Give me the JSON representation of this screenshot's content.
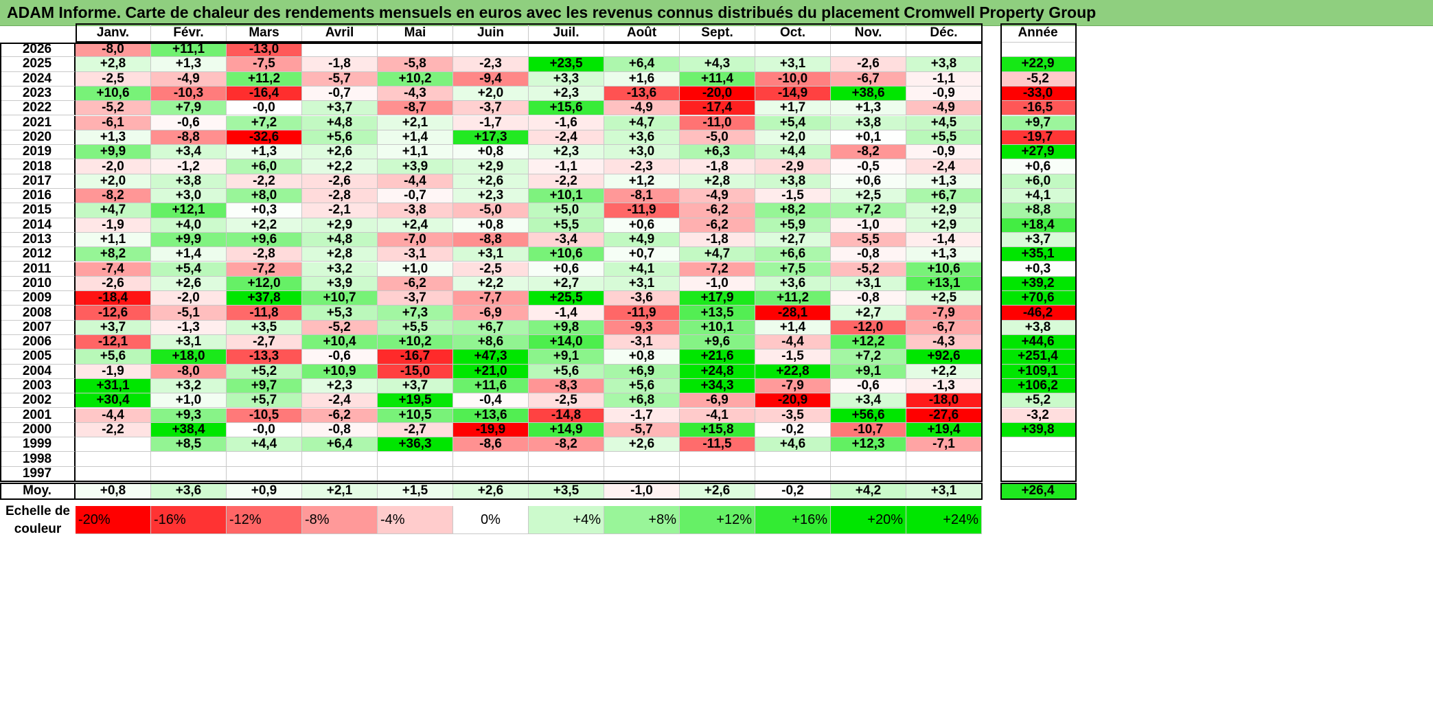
{
  "title": "ADAM Informe. Carte de chaleur des rendements mensuels en euros avec les revenus connus distribués du placement Cromwell Property Group",
  "chart_data": {
    "type": "heatmap",
    "columns": [
      "Janv.",
      "Févr.",
      "Mars",
      "Avril",
      "Mai",
      "Juin",
      "Juil.",
      "Août",
      "Sept.",
      "Oct.",
      "Nov.",
      "Déc."
    ],
    "year_column_label": "Année",
    "average_row_label": "Moy.",
    "rows": [
      {
        "year": "2026",
        "values": [
          "-8,0",
          "+11,1",
          "-13,0",
          "",
          "",
          "",
          "",
          "",
          "",
          "",
          "",
          ""
        ],
        "annual": ""
      },
      {
        "year": "2025",
        "values": [
          "+2,8",
          "+1,3",
          "-7,5",
          "-1,8",
          "-5,8",
          "-2,3",
          "+23,5",
          "+6,4",
          "+4,3",
          "+3,1",
          "-2,6",
          "+3,8"
        ],
        "annual": "+22,9"
      },
      {
        "year": "2024",
        "values": [
          "-2,5",
          "-4,9",
          "+11,2",
          "-5,7",
          "+10,2",
          "-9,4",
          "+3,3",
          "+1,6",
          "+11,4",
          "-10,0",
          "-6,7",
          "-1,1"
        ],
        "annual": "-5,2"
      },
      {
        "year": "2023",
        "values": [
          "+10,6",
          "-10,3",
          "-16,4",
          "-0,7",
          "-4,3",
          "+2,0",
          "+2,3",
          "-13,6",
          "-20,0",
          "-14,9",
          "+38,6",
          "-0,9"
        ],
        "annual": "-33,0"
      },
      {
        "year": "2022",
        "values": [
          "-5,2",
          "+7,9",
          "-0,0",
          "+3,7",
          "-8,7",
          "-3,7",
          "+15,6",
          "-4,9",
          "-17,4",
          "+1,7",
          "+1,3",
          "-4,9"
        ],
        "annual": "-16,5"
      },
      {
        "year": "2021",
        "values": [
          "-6,1",
          "-0,6",
          "+7,2",
          "+4,8",
          "+2,1",
          "-1,7",
          "-1,6",
          "+4,7",
          "-11,0",
          "+5,4",
          "+3,8",
          "+4,5"
        ],
        "annual": "+9,7"
      },
      {
        "year": "2020",
        "values": [
          "+1,3",
          "-8,8",
          "-32,6",
          "+5,6",
          "+1,4",
          "+17,3",
          "-2,4",
          "+3,6",
          "-5,0",
          "+2,0",
          "+0,1",
          "+5,5"
        ],
        "annual": "-19,7"
      },
      {
        "year": "2019",
        "values": [
          "+9,9",
          "+3,4",
          "+1,3",
          "+2,6",
          "+1,1",
          "+0,8",
          "+2,3",
          "+3,0",
          "+6,3",
          "+4,4",
          "-8,2",
          "-0,9"
        ],
        "annual": "+27,9"
      },
      {
        "year": "2018",
        "values": [
          "-2,0",
          "-1,2",
          "+6,0",
          "+2,2",
          "+3,9",
          "+2,9",
          "-1,1",
          "-2,3",
          "-1,8",
          "-2,9",
          "-0,5",
          "-2,4"
        ],
        "annual": "+0,6"
      },
      {
        "year": "2017",
        "values": [
          "+2,0",
          "+3,8",
          "-2,2",
          "-2,6",
          "-4,4",
          "+2,6",
          "-2,2",
          "+1,2",
          "+2,8",
          "+3,8",
          "+0,6",
          "+1,3"
        ],
        "annual": "+6,0"
      },
      {
        "year": "2016",
        "values": [
          "-8,2",
          "+3,0",
          "+8,0",
          "-2,8",
          "-0,7",
          "+2,3",
          "+10,1",
          "-8,1",
          "-4,9",
          "-1,5",
          "+2,5",
          "+6,7"
        ],
        "annual": "+4,1"
      },
      {
        "year": "2015",
        "values": [
          "+4,7",
          "+12,1",
          "+0,3",
          "-2,1",
          "-3,8",
          "-5,0",
          "+5,0",
          "-11,9",
          "-6,2",
          "+8,2",
          "+7,2",
          "+2,9"
        ],
        "annual": "+8,8"
      },
      {
        "year": "2014",
        "values": [
          "-1,9",
          "+4,0",
          "+2,2",
          "+2,9",
          "+2,4",
          "+0,8",
          "+5,5",
          "+0,6",
          "-6,2",
          "+5,9",
          "-1,0",
          "+2,9"
        ],
        "annual": "+18,4"
      },
      {
        "year": "2013",
        "values": [
          "+1,1",
          "+9,9",
          "+9,6",
          "+4,8",
          "-7,0",
          "-8,8",
          "-3,4",
          "+4,9",
          "-1,8",
          "+2,7",
          "-5,5",
          "-1,4"
        ],
        "annual": "+3,7"
      },
      {
        "year": "2012",
        "values": [
          "+8,2",
          "+1,4",
          "-2,8",
          "+2,8",
          "-3,1",
          "+3,1",
          "+10,6",
          "+0,7",
          "+4,7",
          "+6,6",
          "-0,8",
          "+1,3"
        ],
        "annual": "+35,1"
      },
      {
        "year": "2011",
        "values": [
          "-7,4",
          "+5,4",
          "-7,2",
          "+3,2",
          "+1,0",
          "-2,5",
          "+0,6",
          "+4,1",
          "-7,2",
          "+7,5",
          "-5,2",
          "+10,6"
        ],
        "annual": "+0,3"
      },
      {
        "year": "2010",
        "values": [
          "-2,6",
          "+2,6",
          "+12,0",
          "+3,9",
          "-6,2",
          "+2,2",
          "+2,7",
          "+3,1",
          "-1,0",
          "+3,6",
          "+3,1",
          "+13,1"
        ],
        "annual": "+39,2"
      },
      {
        "year": "2009",
        "values": [
          "-18,4",
          "-2,0",
          "+37,8",
          "+10,7",
          "-3,7",
          "-7,7",
          "+25,5",
          "-3,6",
          "+17,9",
          "+11,2",
          "-0,8",
          "+2,5"
        ],
        "annual": "+70,6"
      },
      {
        "year": "2008",
        "values": [
          "-12,6",
          "-5,1",
          "-11,8",
          "+5,3",
          "+7,3",
          "-6,9",
          "-1,4",
          "-11,9",
          "+13,5",
          "-28,1",
          "+2,7",
          "-7,9"
        ],
        "annual": "-46,2"
      },
      {
        "year": "2007",
        "values": [
          "+3,7",
          "-1,3",
          "+3,5",
          "-5,2",
          "+5,5",
          "+6,7",
          "+9,8",
          "-9,3",
          "+10,1",
          "+1,4",
          "-12,0",
          "-6,7"
        ],
        "annual": "+3,8"
      },
      {
        "year": "2006",
        "values": [
          "-12,1",
          "+3,1",
          "-2,7",
          "+10,4",
          "+10,2",
          "+8,6",
          "+14,0",
          "-3,1",
          "+9,6",
          "-4,4",
          "+12,2",
          "-4,3"
        ],
        "annual": "+44,6"
      },
      {
        "year": "2005",
        "values": [
          "+5,6",
          "+18,0",
          "-13,3",
          "-0,6",
          "-16,7",
          "+47,3",
          "+9,1",
          "+0,8",
          "+21,6",
          "-1,5",
          "+7,2",
          "+92,6"
        ],
        "annual": "+251,4"
      },
      {
        "year": "2004",
        "values": [
          "-1,9",
          "-8,0",
          "+5,2",
          "+10,9",
          "-15,0",
          "+21,0",
          "+5,6",
          "+6,9",
          "+24,8",
          "+22,8",
          "+9,1",
          "+2,2"
        ],
        "annual": "+109,1"
      },
      {
        "year": "2003",
        "values": [
          "+31,1",
          "+3,2",
          "+9,7",
          "+2,3",
          "+3,7",
          "+11,6",
          "-8,3",
          "+5,6",
          "+34,3",
          "-7,9",
          "-0,6",
          "-1,3"
        ],
        "annual": "+106,2"
      },
      {
        "year": "2002",
        "values": [
          "+30,4",
          "+1,0",
          "+5,7",
          "-2,4",
          "+19,5",
          "-0,4",
          "-2,5",
          "+6,8",
          "-6,9",
          "-20,9",
          "+3,4",
          "-18,0"
        ],
        "annual": "+5,2"
      },
      {
        "year": "2001",
        "values": [
          "-4,4",
          "+9,3",
          "-10,5",
          "-6,2",
          "+10,5",
          "+13,6",
          "-14,8",
          "-1,7",
          "-4,1",
          "-3,5",
          "+56,6",
          "-27,6"
        ],
        "annual": "-3,2"
      },
      {
        "year": "2000",
        "values": [
          "-2,2",
          "+38,4",
          "-0,0",
          "-0,8",
          "-2,7",
          "-19,9",
          "+14,9",
          "-5,7",
          "+15,8",
          "-0,2",
          "-10,7",
          "+19,4"
        ],
        "annual": "+39,8"
      },
      {
        "year": "1999",
        "values": [
          "",
          "+8,5",
          "+4,4",
          "+6,4",
          "+36,3",
          "-8,6",
          "-8,2",
          "+2,6",
          "-11,5",
          "+4,6",
          "+12,3",
          "-7,1"
        ],
        "annual": ""
      },
      {
        "year": "1998",
        "values": [
          "",
          "",
          "",
          "",
          "",
          "",
          "",
          "",
          "",
          "",
          "",
          ""
        ],
        "annual": ""
      },
      {
        "year": "1997",
        "values": [
          "",
          "",
          "",
          "",
          "",
          "",
          "",
          "",
          "",
          "",
          "",
          ""
        ],
        "annual": ""
      }
    ],
    "averages": [
      "+0,8",
      "+3,6",
      "+0,9",
      "+2,1",
      "+1,5",
      "+2,6",
      "+3,5",
      "-1,0",
      "+2,6",
      "-0,2",
      "+4,2",
      "+3,1"
    ],
    "average_annual": "+26,4",
    "color_scale": {
      "label_line1": "Echelle de",
      "label_line2": "couleur",
      "stops": [
        "-20%",
        "-16%",
        "-12%",
        "-8%",
        "-4%",
        "0%",
        "+4%",
        "+8%",
        "+12%",
        "+16%",
        "+20%",
        "+24%"
      ],
      "stop_values": [
        -20,
        -16,
        -12,
        -8,
        -4,
        0,
        4,
        8,
        12,
        16,
        20,
        24
      ]
    },
    "colors": {
      "negative": "#ff0000",
      "positive": "#00e600",
      "neutral": "#ffffff",
      "title_bar": "#8fcf7f"
    }
  }
}
